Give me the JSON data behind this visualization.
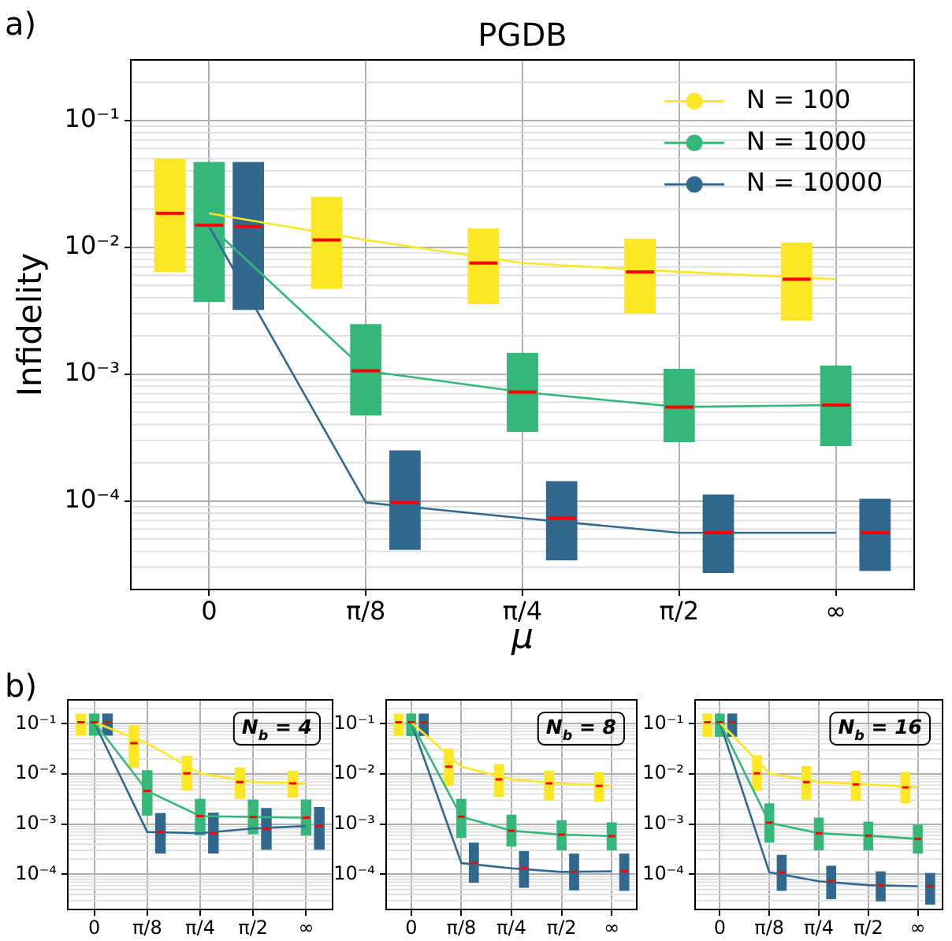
{
  "chart_data": [
    {
      "type": "box",
      "title": "PGDB",
      "xlabel": "μ",
      "ylabel": "Infidelity",
      "annotations": [
        "a)"
      ],
      "categories": [
        "0",
        "π/8",
        "π/4",
        "π/2",
        "∞"
      ],
      "ylim": [
        2e-05,
        0.3
      ],
      "yticks": [
        {
          "value": 0.0001,
          "label": "10⁻⁴"
        },
        {
          "value": 0.001,
          "label": "10⁻³"
        },
        {
          "value": 0.01,
          "label": "10⁻²"
        },
        {
          "value": 0.1,
          "label": "10⁻¹"
        }
      ],
      "log": true,
      "grid": true,
      "legend": "top right",
      "line_style": "solid",
      "series": [
        {
          "color": "#fde725",
          "boxes": [
            {
              "low": 0.0064,
              "q1": 0.0064,
              "median": 0.0185,
              "q3": 0.05,
              "high": 0.05
            },
            {
              "low": 0.0047,
              "q1": 0.0047,
              "median": 0.0114,
              "q3": 0.025,
              "high": 0.025
            },
            {
              "low": 0.00355,
              "q1": 0.00355,
              "median": 0.0075,
              "q3": 0.0141,
              "high": 0.0141
            },
            {
              "low": 0.003,
              "q1": 0.003,
              "median": 0.0064,
              "q3": 0.0117,
              "high": 0.0117
            },
            {
              "low": 0.00264,
              "q1": 0.00264,
              "median": 0.0056,
              "q3": 0.0109,
              "high": 0.0109
            }
          ]
        },
        {
          "color": "#35b779",
          "boxes": [
            {
              "low": 0.0037,
              "q1": 0.0037,
              "median": 0.0149,
              "q3": 0.047,
              "high": 0.047
            },
            {
              "low": 0.00047,
              "q1": 0.00047,
              "median": 0.00106,
              "q3": 0.00248,
              "high": 0.00248
            },
            {
              "low": 0.00035,
              "q1": 0.00035,
              "median": 0.00072,
              "q3": 0.00147,
              "high": 0.00147
            },
            {
              "low": 0.00029,
              "q1": 0.00029,
              "median": 0.00055,
              "q3": 0.0011,
              "high": 0.0011
            },
            {
              "low": 0.00027,
              "q1": 0.00027,
              "median": 0.00057,
              "q3": 0.00117,
              "high": 0.00117
            }
          ]
        },
        {
          "color": "#31688e",
          "boxes": [
            {
              "low": 0.0032,
              "q1": 0.0032,
              "median": 0.0146,
              "q3": 0.047,
              "high": 0.047
            },
            {
              "low": 4.1e-05,
              "q1": 4.1e-05,
              "median": 9.7e-05,
              "q3": 0.00025,
              "high": 0.00025
            },
            {
              "low": 3.4e-05,
              "q1": 3.4e-05,
              "median": 7.3e-05,
              "q3": 0.000143,
              "high": 0.000143
            },
            {
              "low": 2.7e-05,
              "q1": 2.7e-05,
              "median": 5.6e-05,
              "q3": 0.000112,
              "high": 0.000112
            },
            {
              "low": 2.8e-05,
              "q1": 2.8e-05,
              "median": 5.6e-05,
              "q3": 0.000104,
              "high": 0.000104
            }
          ]
        },
        {
          "type": "line",
          "name": "N = 100",
          "color": "#fde725",
          "values": [
            0.0185,
            0.0114,
            0.0075,
            0.0064,
            0.0056
          ]
        },
        {
          "type": "line",
          "name": "N = 1000",
          "color": "#35b779",
          "values": [
            0.0149,
            0.00106,
            0.00072,
            0.00055,
            0.00057
          ]
        },
        {
          "type": "line",
          "name": "N = 10000",
          "color": "#31688e",
          "values": [
            0.0146,
            9.7e-05,
            7.3e-05,
            5.6e-05,
            5.6e-05
          ]
        }
      ]
    },
    {
      "type": "box",
      "annotations": [
        "b)",
        "N$_{b}$ = 4"
      ],
      "categories": [
        "0",
        "π/8",
        "π/4",
        "π/2",
        "∞"
      ],
      "ylim": [
        2e-05,
        0.3
      ],
      "yticks": [
        {
          "value": 0.0001,
          "label": "10⁻⁴"
        },
        {
          "value": 0.001,
          "label": "10⁻³"
        },
        {
          "value": 0.01,
          "label": "10⁻²"
        },
        {
          "value": 0.1,
          "label": "10⁻¹"
        }
      ],
      "log": true,
      "grid": true,
      "line_style": "solid",
      "series": [
        {
          "color": "#fde725",
          "boxes": [
            {
              "low": 0.058,
              "q1": 0.058,
              "median": 0.107,
              "q3": 0.16,
              "high": 0.16
            },
            {
              "low": 0.0134,
              "q1": 0.0134,
              "median": 0.041,
              "q3": 0.093,
              "high": 0.093
            },
            {
              "low": 0.0047,
              "q1": 0.0047,
              "median": 0.0103,
              "q3": 0.023,
              "high": 0.023
            },
            {
              "low": 0.0032,
              "q1": 0.0032,
              "median": 0.0069,
              "q3": 0.0134,
              "high": 0.0134
            },
            {
              "low": 0.0034,
              "q1": 0.0034,
              "median": 0.0065,
              "q3": 0.0116,
              "high": 0.0116
            }
          ]
        },
        {
          "color": "#35b779",
          "boxes": [
            {
              "low": 0.058,
              "q1": 0.058,
              "median": 0.107,
              "q3": 0.16,
              "high": 0.16
            },
            {
              "low": 0.00148,
              "q1": 0.00148,
              "median": 0.0046,
              "q3": 0.0119,
              "high": 0.0119
            },
            {
              "low": 0.0006,
              "q1": 0.0006,
              "median": 0.00145,
              "q3": 0.0032,
              "high": 0.0032
            },
            {
              "low": 0.00063,
              "q1": 0.00063,
              "median": 0.00139,
              "q3": 0.0031,
              "high": 0.0031
            },
            {
              "low": 0.00059,
              "q1": 0.00059,
              "median": 0.00135,
              "q3": 0.0031,
              "high": 0.0031
            }
          ]
        },
        {
          "color": "#31688e",
          "boxes": [
            {
              "low": 0.058,
              "q1": 0.058,
              "median": 0.107,
              "q3": 0.16,
              "high": 0.16
            },
            {
              "low": 0.00026,
              "q1": 0.00026,
              "median": 0.0007,
              "q3": 0.00167,
              "high": 0.00167
            },
            {
              "low": 0.00026,
              "q1": 0.00026,
              "median": 0.00066,
              "q3": 0.0017,
              "high": 0.0017
            },
            {
              "low": 0.00031,
              "q1": 0.00031,
              "median": 0.00082,
              "q3": 0.0021,
              "high": 0.0021
            },
            {
              "low": 0.00031,
              "q1": 0.00031,
              "median": 0.00092,
              "q3": 0.0022,
              "high": 0.0022
            }
          ]
        },
        {
          "type": "line",
          "color": "#fde725",
          "values": [
            0.107,
            0.041,
            0.0103,
            0.0069,
            0.0065
          ]
        },
        {
          "type": "line",
          "color": "#35b779",
          "values": [
            0.107,
            0.0046,
            0.00145,
            0.00139,
            0.00135
          ]
        },
        {
          "type": "line",
          "color": "#31688e",
          "values": [
            0.107,
            0.0007,
            0.00066,
            0.00082,
            0.00092
          ]
        }
      ]
    },
    {
      "type": "box",
      "annotations": [
        "N$_{b}$ = 8"
      ],
      "categories": [
        "0",
        "π/8",
        "π/4",
        "π/2",
        "∞"
      ],
      "ylim": [
        2e-05,
        0.3
      ],
      "yticks": [
        {
          "value": 0.0001,
          "label": "10⁻⁴"
        },
        {
          "value": 0.001,
          "label": "10⁻³"
        },
        {
          "value": 0.01,
          "label": "10⁻²"
        },
        {
          "value": 0.1,
          "label": "10⁻¹"
        }
      ],
      "log": true,
      "grid": true,
      "line_style": "solid",
      "series": [
        {
          "color": "#fde725",
          "boxes": [
            {
              "low": 0.057,
              "q1": 0.057,
              "median": 0.107,
              "q3": 0.16,
              "high": 0.16
            },
            {
              "low": 0.0058,
              "q1": 0.0058,
              "median": 0.014,
              "q3": 0.032,
              "high": 0.032
            },
            {
              "low": 0.0035,
              "q1": 0.0035,
              "median": 0.0078,
              "q3": 0.0158,
              "high": 0.0158
            },
            {
              "low": 0.003,
              "q1": 0.003,
              "median": 0.0065,
              "q3": 0.0116,
              "high": 0.0116
            },
            {
              "low": 0.0028,
              "q1": 0.0028,
              "median": 0.0058,
              "q3": 0.0108,
              "high": 0.0108
            }
          ]
        },
        {
          "color": "#35b779",
          "boxes": [
            {
              "low": 0.057,
              "q1": 0.057,
              "median": 0.107,
              "q3": 0.16,
              "high": 0.16
            },
            {
              "low": 0.00053,
              "q1": 0.00053,
              "median": 0.00141,
              "q3": 0.0032,
              "high": 0.0032
            },
            {
              "low": 0.00036,
              "q1": 0.00036,
              "median": 0.00074,
              "q3": 0.00155,
              "high": 0.00155
            },
            {
              "low": 0.0003,
              "q1": 0.0003,
              "median": 0.00062,
              "q3": 0.0012,
              "high": 0.0012
            },
            {
              "low": 0.0003,
              "q1": 0.0003,
              "median": 0.00058,
              "q3": 0.00109,
              "high": 0.00109
            }
          ]
        },
        {
          "color": "#31688e",
          "boxes": [
            {
              "low": 0.057,
              "q1": 0.057,
              "median": 0.107,
              "q3": 0.16,
              "high": 0.16
            },
            {
              "low": 6.8e-05,
              "q1": 6.8e-05,
              "median": 0.000168,
              "q3": 0.00043,
              "high": 0.00043
            },
            {
              "low": 5.4e-05,
              "q1": 5.4e-05,
              "median": 0.000132,
              "q3": 0.00029,
              "high": 0.00029
            },
            {
              "low": 4.8e-05,
              "q1": 4.8e-05,
              "median": 0.000112,
              "q3": 0.00026,
              "high": 0.00026
            },
            {
              "low": 4.7e-05,
              "q1": 4.7e-05,
              "median": 0.000115,
              "q3": 0.00026,
              "high": 0.00026
            }
          ]
        },
        {
          "type": "line",
          "color": "#fde725",
          "values": [
            0.107,
            0.014,
            0.0078,
            0.0065,
            0.0058
          ]
        },
        {
          "type": "line",
          "color": "#35b779",
          "values": [
            0.107,
            0.00141,
            0.00074,
            0.00062,
            0.00058
          ]
        },
        {
          "type": "line",
          "color": "#31688e",
          "values": [
            0.107,
            0.000168,
            0.000132,
            0.000112,
            0.000115
          ]
        }
      ]
    },
    {
      "type": "box",
      "annotations": [
        "N$_{b}$ = 16"
      ],
      "categories": [
        "0",
        "π/8",
        "π/4",
        "π/2",
        "∞"
      ],
      "ylim": [
        2e-05,
        0.3
      ],
      "yticks": [
        {
          "value": 0.0001,
          "label": "10⁻⁴"
        },
        {
          "value": 0.001,
          "label": "10⁻³"
        },
        {
          "value": 0.01,
          "label": "10⁻²"
        },
        {
          "value": 0.1,
          "label": "10⁻¹"
        }
      ],
      "log": true,
      "grid": true,
      "line_style": "solid",
      "series": [
        {
          "color": "#fde725",
          "boxes": [
            {
              "low": 0.055,
              "q1": 0.055,
              "median": 0.107,
              "q3": 0.16,
              "high": 0.16
            },
            {
              "low": 0.0046,
              "q1": 0.0046,
              "median": 0.0103,
              "q3": 0.0236,
              "high": 0.0236
            },
            {
              "low": 0.0031,
              "q1": 0.0031,
              "median": 0.0069,
              "q3": 0.0144,
              "high": 0.0144
            },
            {
              "low": 0.0029,
              "q1": 0.0029,
              "median": 0.0062,
              "q3": 0.0116,
              "high": 0.0116
            },
            {
              "low": 0.0026,
              "q1": 0.0026,
              "median": 0.0054,
              "q3": 0.011,
              "high": 0.011
            }
          ]
        },
        {
          "color": "#35b779",
          "boxes": [
            {
              "low": 0.055,
              "q1": 0.055,
              "median": 0.107,
              "q3": 0.16,
              "high": 0.16
            },
            {
              "low": 0.00043,
              "q1": 0.00043,
              "median": 0.00107,
              "q3": 0.0026,
              "high": 0.0026
            },
            {
              "low": 0.0003,
              "q1": 0.0003,
              "median": 0.00066,
              "q3": 0.00135,
              "high": 0.00135
            },
            {
              "low": 0.0003,
              "q1": 0.0003,
              "median": 0.00059,
              "q3": 0.00112,
              "high": 0.00112
            },
            {
              "low": 0.00026,
              "q1": 0.00026,
              "median": 0.00051,
              "q3": 0.00098,
              "high": 0.00098
            }
          ]
        },
        {
          "color": "#31688e",
          "boxes": [
            {
              "low": 0.055,
              "q1": 0.055,
              "median": 0.107,
              "q3": 0.16,
              "high": 0.16
            },
            {
              "low": 4.7e-05,
              "q1": 4.7e-05,
              "median": 0.00011,
              "q3": 0.000245,
              "high": 0.000245
            },
            {
              "low": 3.2e-05,
              "q1": 3.2e-05,
              "median": 7.3e-05,
              "q3": 0.000149,
              "high": 0.000149
            },
            {
              "low": 2.9e-05,
              "q1": 2.9e-05,
              "median": 6.1e-05,
              "q3": 0.000115,
              "high": 0.000115
            },
            {
              "low": 2.5e-05,
              "q1": 2.5e-05,
              "median": 5.8e-05,
              "q3": 0.000107,
              "high": 0.000107
            }
          ]
        },
        {
          "type": "line",
          "color": "#fde725",
          "values": [
            0.107,
            0.0103,
            0.0069,
            0.0062,
            0.0054
          ]
        },
        {
          "type": "line",
          "color": "#35b779",
          "values": [
            0.107,
            0.00107,
            0.00066,
            0.00059,
            0.00051
          ]
        },
        {
          "type": "line",
          "color": "#31688e",
          "values": [
            0.107,
            0.00011,
            7.3e-05,
            6.1e-05,
            5.8e-05
          ]
        }
      ]
    }
  ]
}
